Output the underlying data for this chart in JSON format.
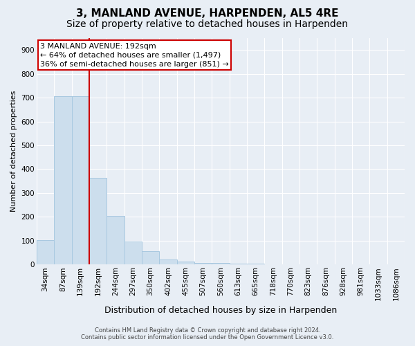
{
  "title": "3, MANLAND AVENUE, HARPENDEN, AL5 4RE",
  "subtitle": "Size of property relative to detached houses in Harpenden",
  "xlabel": "Distribution of detached houses by size in Harpenden",
  "ylabel": "Number of detached properties",
  "categories": [
    "34sqm",
    "87sqm",
    "139sqm",
    "192sqm",
    "244sqm",
    "297sqm",
    "350sqm",
    "402sqm",
    "455sqm",
    "507sqm",
    "560sqm",
    "613sqm",
    "665sqm",
    "718sqm",
    "770sqm",
    "823sqm",
    "876sqm",
    "928sqm",
    "981sqm",
    "1033sqm",
    "1086sqm"
  ],
  "values": [
    103,
    706,
    706,
    363,
    203,
    96,
    57,
    20,
    11,
    6,
    6,
    4,
    3,
    2,
    1,
    1,
    1,
    1,
    1,
    1,
    1
  ],
  "bar_color": "#ccdeed",
  "bar_edgecolor": "#a8c8e0",
  "vline_x": 2.5,
  "vline_color": "#cc0000",
  "annotation_text": "3 MANLAND AVENUE: 192sqm\n← 64% of detached houses are smaller (1,497)\n36% of semi-detached houses are larger (851) →",
  "annotation_box_facecolor": "#ffffff",
  "annotation_box_edgecolor": "#cc0000",
  "footnote": "Contains HM Land Registry data © Crown copyright and database right 2024.\nContains public sector information licensed under the Open Government Licence v3.0.",
  "ylim": [
    0,
    950
  ],
  "yticks": [
    0,
    100,
    200,
    300,
    400,
    500,
    600,
    700,
    800,
    900
  ],
  "plot_bg_color": "#e8eef5",
  "fig_bg_color": "#e8eef5",
  "grid_color": "#ffffff",
  "title_fontsize": 11,
  "subtitle_fontsize": 10,
  "xlabel_fontsize": 9,
  "ylabel_fontsize": 8,
  "tick_fontsize": 7.5,
  "annot_fontsize": 8,
  "footnote_fontsize": 6
}
